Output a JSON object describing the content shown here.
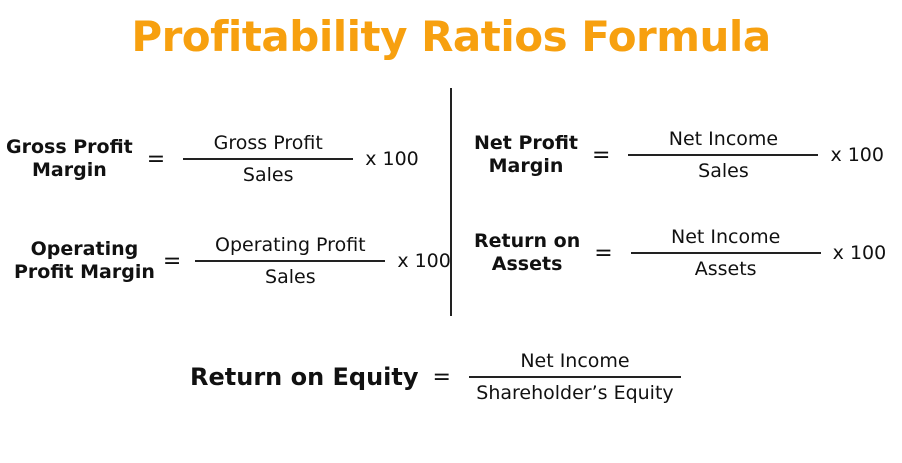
{
  "title": "Profitability Ratios Formula",
  "accent_color": "#f7a00f",
  "formulas": [
    {
      "label_lines": [
        "Gross Profit",
        "Margin"
      ],
      "numerator": "Gross Profit",
      "denominator": "Sales",
      "multiplier": "x 100"
    },
    {
      "label_lines": [
        "Operating",
        "Profit Margin"
      ],
      "numerator": "Operating Profit",
      "denominator": "Sales",
      "multiplier": "x 100"
    },
    {
      "label_lines": [
        "Net Profit",
        "Margin"
      ],
      "numerator": "Net Income",
      "denominator": "Sales",
      "multiplier": "x 100"
    },
    {
      "label_lines": [
        "Return on",
        "Assets"
      ],
      "numerator": "Net Income",
      "denominator": "Assets",
      "multiplier": "x 100"
    },
    {
      "label_lines": [
        "Return on Equity"
      ],
      "numerator": "Net Income",
      "denominator": "Shareholder’s Equity"
    }
  ],
  "equals": "="
}
